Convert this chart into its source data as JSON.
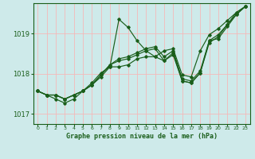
{
  "title": "Graphe pression niveau de la mer (hPa)",
  "background_color": "#ceeaea",
  "grid_color": "#f5b8b8",
  "line_color": "#1a5e1a",
  "xlim": [
    -0.5,
    23.5
  ],
  "ylim": [
    1016.75,
    1019.75
  ],
  "yticks": [
    1017,
    1018,
    1019
  ],
  "xticks": [
    0,
    1,
    2,
    3,
    4,
    5,
    6,
    7,
    8,
    9,
    10,
    11,
    12,
    13,
    14,
    15,
    16,
    17,
    18,
    19,
    20,
    21,
    22,
    23
  ],
  "series": [
    [
      1017.57,
      1017.47,
      1017.47,
      1017.37,
      1017.47,
      1017.57,
      1017.72,
      1017.92,
      1018.17,
      1019.35,
      1019.15,
      1018.82,
      1018.57,
      1018.42,
      1018.57,
      1018.62,
      1017.97,
      1017.92,
      1018.57,
      1018.97,
      1019.12,
      1019.32,
      1019.52,
      1019.67
    ],
    [
      1017.57,
      1017.47,
      1017.47,
      1017.37,
      1017.47,
      1017.57,
      1017.72,
      1017.97,
      1018.22,
      1018.32,
      1018.37,
      1018.47,
      1018.57,
      1018.62,
      1018.32,
      1018.47,
      1017.82,
      1017.77,
      1018.02,
      1018.77,
      1018.92,
      1019.22,
      1019.47,
      1019.67
    ],
    [
      1017.57,
      1017.47,
      1017.47,
      1017.37,
      1017.47,
      1017.57,
      1017.72,
      1017.97,
      1018.22,
      1018.37,
      1018.42,
      1018.52,
      1018.62,
      1018.67,
      1018.42,
      1018.57,
      1017.87,
      1017.82,
      1018.07,
      1018.82,
      1018.97,
      1019.22,
      1019.52,
      1019.67
    ],
    [
      1017.57,
      1017.47,
      1017.37,
      1017.27,
      1017.37,
      1017.57,
      1017.77,
      1018.02,
      1018.17,
      1018.17,
      1018.22,
      1018.37,
      1018.42,
      1018.42,
      1018.32,
      1018.52,
      1017.82,
      1017.77,
      1018.02,
      1018.82,
      1018.87,
      1019.17,
      1019.47,
      1019.67
    ]
  ]
}
